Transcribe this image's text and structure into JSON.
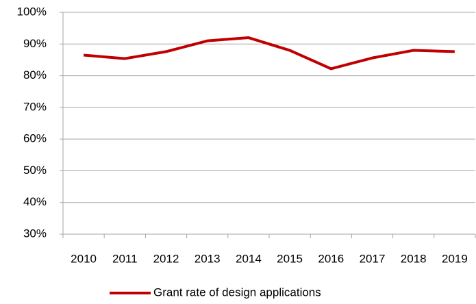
{
  "chart_data": {
    "type": "line",
    "categories": [
      "2010",
      "2011",
      "2012",
      "2013",
      "2014",
      "2015",
      "2016",
      "2017",
      "2018",
      "2019"
    ],
    "series": [
      {
        "name": "Grant rate of design applications",
        "color": "#c00000",
        "values": [
          86.5,
          85.4,
          87.6,
          91.0,
          92.0,
          88.0,
          82.2,
          85.6,
          88.0,
          87.6
        ]
      }
    ],
    "ylim": [
      30,
      100
    ],
    "yticks": [
      {
        "value": 30,
        "label": "30%"
      },
      {
        "value": 40,
        "label": "40%"
      },
      {
        "value": 50,
        "label": "50%"
      },
      {
        "value": 60,
        "label": "60%"
      },
      {
        "value": 70,
        "label": "70%"
      },
      {
        "value": 80,
        "label": "80%"
      },
      {
        "value": 90,
        "label": "90%"
      },
      {
        "value": 100,
        "label": "100%"
      }
    ],
    "grid": true,
    "legend": "bottom"
  }
}
